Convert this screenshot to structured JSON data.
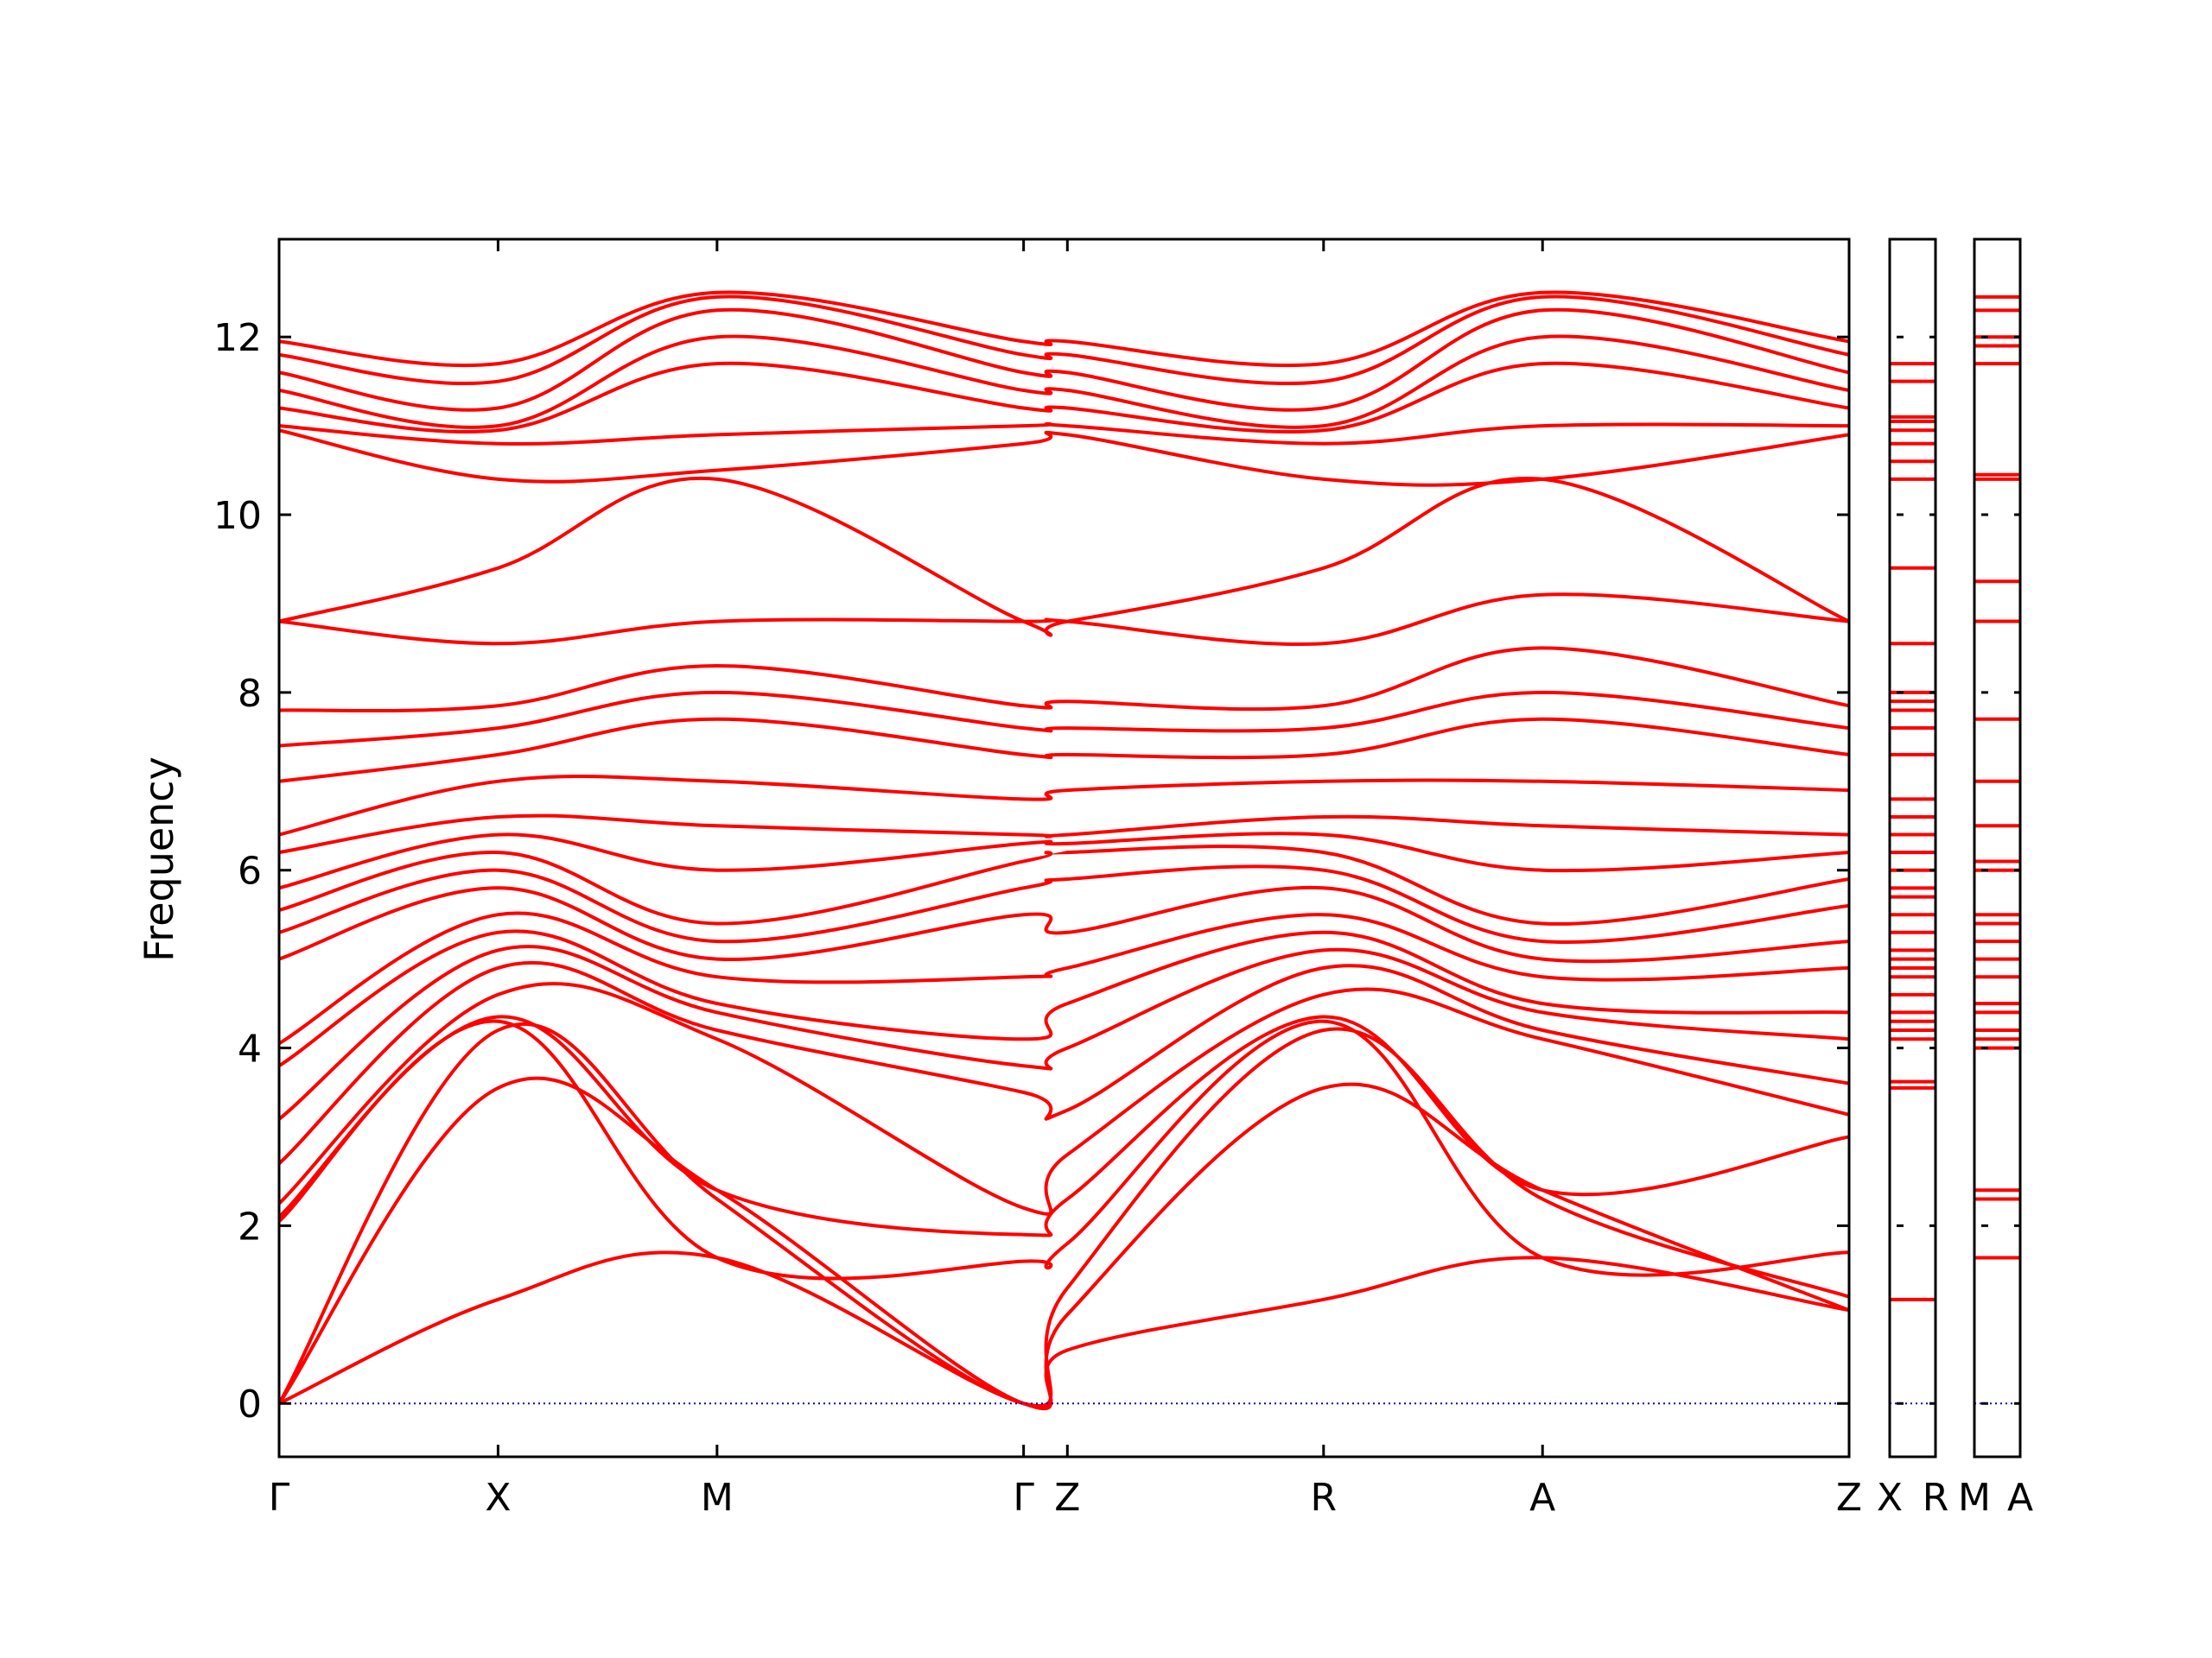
{
  "chart_data": {
    "type": "line",
    "ylabel": "Frequency",
    "ylim": [
      -0.6,
      13.1
    ],
    "y_ticks": [
      0,
      2,
      4,
      6,
      8,
      10,
      12
    ],
    "y_tick_labels": [
      "0",
      "2",
      "4",
      "6",
      "8",
      "10",
      "12"
    ],
    "x_tick_labels": [
      "Γ",
      "X",
      "M",
      "Γ",
      "Z",
      "R",
      "A",
      "Z",
      "X",
      "R",
      "M",
      "A"
    ],
    "colors": {
      "bands": "#ff0000",
      "zero_line": "#0000cc",
      "axes": "#000000"
    },
    "panels": [
      {
        "path": [
          "Γ",
          "X",
          "M",
          "Γ",
          "Z",
          "R",
          "A",
          "Z"
        ],
        "x": [
          0,
          1,
          2,
          3.4,
          3.6,
          4.77,
          5.77,
          7.17
        ],
        "series": [
          {
            "values": [
              0,
              1.17,
              1.64,
              0,
              0.6,
              1.17,
              1.64,
              1.05
            ]
          },
          {
            "values": [
              0,
              3.55,
              2.4,
              0,
              1.0,
              3.55,
              2.4,
              1.05
            ]
          },
          {
            "values": [
              0,
              4.2,
              2.3,
              0,
              1.3,
              4.2,
              2.3,
              1.2
            ]
          },
          {
            "values": [
              2.05,
              4.3,
              1.64,
              1.6,
              1.8,
              4.3,
              1.64,
              1.7
            ]
          },
          {
            "values": [
              2.1,
              4.35,
              2.4,
              1.9,
              2.3,
              4.35,
              2.4,
              3.0
            ]
          },
          {
            "values": [
              2.25,
              4.6,
              4.1,
              2.2,
              2.8,
              4.6,
              4.1,
              3.25
            ]
          },
          {
            "values": [
              2.7,
              4.9,
              4.2,
              3.5,
              3.3,
              4.9,
              4.2,
              3.6
            ]
          },
          {
            "values": [
              3.2,
              5.1,
              4.4,
              3.8,
              4.0,
              5.1,
              4.4,
              4.1
            ]
          },
          {
            "values": [
              3.8,
              5.3,
              4.5,
              4.1,
              4.5,
              5.3,
              4.5,
              4.4
            ]
          },
          {
            "values": [
              4.05,
              5.5,
              4.8,
              4.8,
              4.9,
              5.5,
              4.8,
              4.9
            ]
          },
          {
            "values": [
              5.0,
              5.8,
              5.0,
              5.5,
              5.3,
              5.8,
              5.0,
              5.2
            ]
          },
          {
            "values": [
              5.3,
              6.0,
              5.2,
              5.8,
              5.9,
              6.0,
              5.2,
              5.6
            ]
          },
          {
            "values": [
              5.55,
              6.2,
              5.4,
              6.1,
              6.2,
              6.2,
              5.4,
              5.9
            ]
          },
          {
            "values": [
              5.8,
              6.4,
              6.0,
              6.3,
              6.3,
              6.4,
              6.0,
              6.2
            ]
          },
          {
            "values": [
              6.2,
              6.6,
              6.5,
              6.4,
              6.4,
              6.6,
              6.5,
              6.4
            ]
          },
          {
            "values": [
              6.4,
              7.0,
              7.0,
              6.8,
              6.9,
              7.0,
              7.0,
              6.9
            ]
          },
          {
            "values": [
              7.0,
              7.3,
              7.7,
              7.3,
              7.3,
              7.3,
              7.7,
              7.3
            ]
          },
          {
            "values": [
              7.4,
              7.6,
              8.0,
              7.6,
              7.6,
              7.6,
              8.0,
              7.6
            ]
          },
          {
            "values": [
              7.8,
              7.85,
              8.3,
              7.85,
              7.9,
              7.85,
              8.5,
              7.85
            ]
          },
          {
            "values": [
              8.8,
              8.55,
              8.8,
              8.8,
              8.8,
              8.55,
              9.1,
              8.8
            ]
          },
          {
            "values": [
              8.8,
              9.4,
              10.4,
              8.8,
              8.8,
              9.4,
              10.4,
              8.8
            ]
          },
          {
            "values": [
              10.95,
              10.4,
              10.5,
              10.8,
              10.9,
              10.4,
              10.4,
              10.9
            ]
          },
          {
            "values": [
              11.0,
              10.8,
              10.9,
              11.0,
              11.0,
              10.8,
              11.0,
              11.0
            ]
          },
          {
            "values": [
              11.2,
              10.95,
              11.7,
              11.2,
              11.2,
              10.95,
              11.7,
              11.2
            ]
          },
          {
            "values": [
              11.4,
              11.0,
              12.0,
              11.4,
              11.4,
              11.0,
              12.0,
              11.4
            ]
          },
          {
            "values": [
              11.6,
              11.2,
              12.3,
              11.6,
              11.6,
              11.2,
              12.3,
              11.6
            ]
          },
          {
            "values": [
              11.8,
              11.5,
              12.45,
              11.8,
              11.8,
              11.5,
              12.45,
              11.8
            ]
          },
          {
            "values": [
              11.95,
              11.7,
              12.5,
              11.95,
              11.95,
              11.7,
              12.5,
              11.95
            ]
          }
        ]
      },
      {
        "path": [
          "X",
          "R"
        ],
        "x": [
          0,
          1
        ],
        "flat_bands": [
          1.17,
          3.55,
          3.62,
          4.1,
          4.2,
          4.3,
          4.4,
          4.6,
          4.8,
          4.9,
          5.0,
          5.1,
          5.3,
          5.5,
          5.7,
          5.8,
          6.0,
          6.2,
          6.4,
          6.6,
          6.8,
          7.3,
          7.6,
          7.8,
          7.9,
          8.0,
          8.55,
          9.4,
          10.4,
          10.6,
          10.8,
          10.95,
          11.05,
          11.1,
          11.5,
          11.7
        ]
      },
      {
        "path": [
          "M",
          "A"
        ],
        "x": [
          0,
          1
        ],
        "flat_bands": [
          1.64,
          2.3,
          2.4,
          4.0,
          4.1,
          4.2,
          4.4,
          4.5,
          4.8,
          5.0,
          5.2,
          5.4,
          5.5,
          6.0,
          6.1,
          6.5,
          7.0,
          7.7,
          8.8,
          9.25,
          10.4,
          10.45,
          11.7,
          11.9,
          12.0,
          12.3,
          12.45
        ]
      }
    ]
  }
}
